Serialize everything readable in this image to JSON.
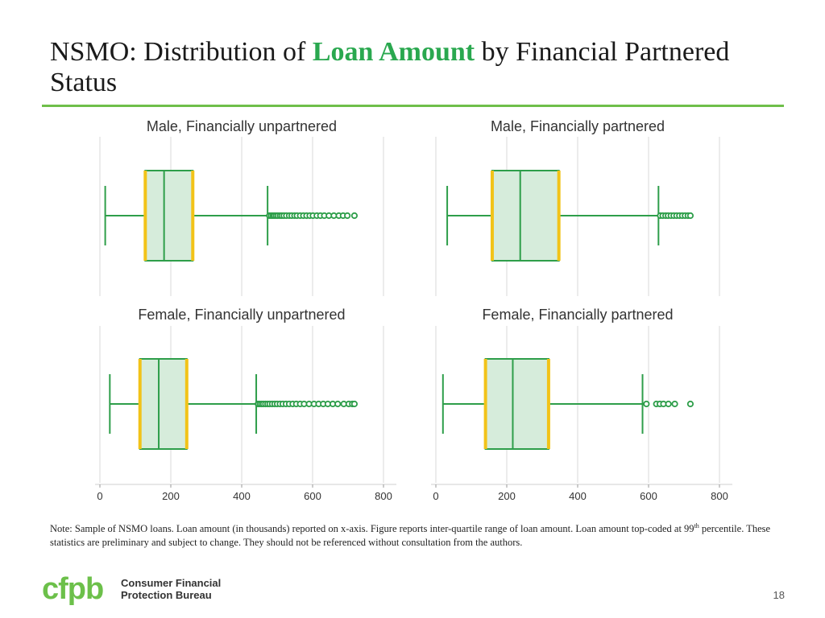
{
  "title": {
    "prefix": "NSMO: Distribution of ",
    "highlight": "Loan Amount",
    "suffix": " by Financial Partnered Status"
  },
  "colors": {
    "accent_green": "#2aa84f",
    "box_fill": "#d6ecdb",
    "box_stroke": "#2e9e4a",
    "quartile_edge": "#f2c318",
    "rule_green": "#6fbf4a",
    "grid": "#d9d9d9"
  },
  "chart_data": [
    {
      "type": "boxplot",
      "title": "Male, Financially unpartnered",
      "xlim": [
        0,
        800
      ],
      "ticks": [
        0,
        200,
        400,
        600,
        800
      ],
      "xlabel": "",
      "whisker_low": 15,
      "q1": 128,
      "median": 181,
      "q3": 262,
      "whisker_high": 473,
      "outliers": [
        478,
        483,
        488,
        492,
        497,
        502,
        508,
        513,
        519,
        526,
        534,
        541,
        549,
        556,
        565,
        574,
        583,
        592,
        601,
        612,
        622,
        633,
        646,
        660,
        674,
        686,
        698,
        718
      ]
    },
    {
      "type": "boxplot",
      "title": "Male, Financially partnered",
      "xlim": [
        0,
        800
      ],
      "ticks": [
        0,
        200,
        400,
        600,
        800
      ],
      "xlabel": "",
      "whisker_low": 32,
      "q1": 159,
      "median": 238,
      "q3": 347,
      "whisker_high": 628,
      "outliers": [
        633,
        640,
        648,
        655,
        663,
        671,
        679,
        687,
        695,
        703,
        711,
        718
      ]
    },
    {
      "type": "boxplot",
      "title": "Female, Financially unpartnered",
      "xlim": [
        0,
        800
      ],
      "ticks": [
        0,
        200,
        400,
        600,
        800
      ],
      "xlabel": "",
      "whisker_low": 28,
      "q1": 113,
      "median": 166,
      "q3": 245,
      "whisker_high": 441,
      "outliers": [
        446,
        451,
        456,
        461,
        467,
        473,
        479,
        486,
        493,
        500,
        508,
        516,
        525,
        534,
        544,
        554,
        565,
        576,
        590,
        604,
        617,
        630,
        643,
        657,
        671,
        688,
        702,
        712,
        718
      ]
    },
    {
      "type": "boxplot",
      "title": "Female, Financially partnered",
      "xlim": [
        0,
        800
      ],
      "ticks": [
        0,
        200,
        400,
        600,
        800
      ],
      "xlabel": "",
      "whisker_low": 20,
      "q1": 140,
      "median": 217,
      "q3": 318,
      "whisker_high": 583,
      "outliers": [
        594,
        622,
        632,
        642,
        656,
        674,
        718
      ]
    }
  ],
  "note": {
    "before_sup": "Note: Sample of NSMO loans. Loan amount (in thousands) reported on x-axis. Figure reports inter-quartile range of loan amount. Loan amount top-coded at 99",
    "sup": "th",
    "after_sup": " percentile. These statistics are preliminary and subject to change. They should not be referenced without consultation from the authors."
  },
  "footer": {
    "logo_text": "cfpb",
    "brand_line1": "Consumer Financial",
    "brand_line2": "Protection Bureau",
    "page_number": "18"
  }
}
